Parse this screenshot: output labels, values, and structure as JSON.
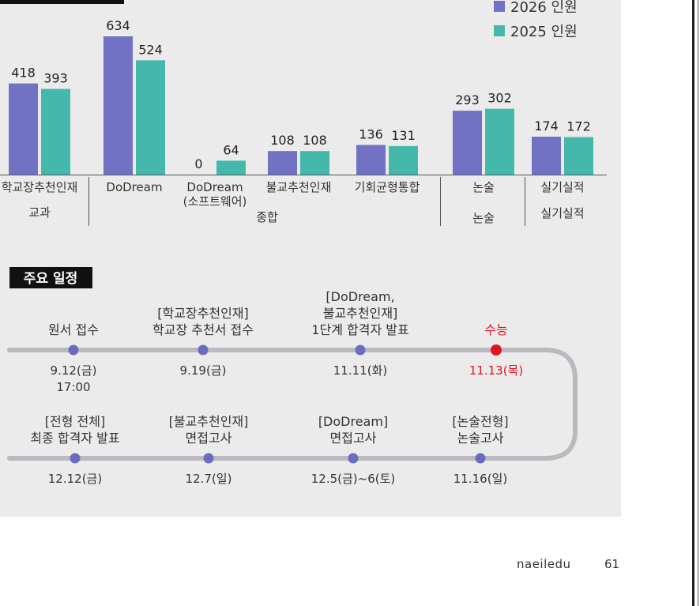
{
  "legend": [
    {
      "label": "2026 인원",
      "color": "#7272c4"
    },
    {
      "label": "2025 인원",
      "color": "#45b8ac"
    }
  ],
  "chart_data": {
    "type": "bar",
    "categories": [
      "학교장추천인재",
      "DoDream",
      "DoDream (소프트웨어)",
      "불교추천인재",
      "기회균형통합",
      "논술",
      "실기실적"
    ],
    "category_lines": [
      [
        "학교장추천인재"
      ],
      [
        "DoDream"
      ],
      [
        "DoDream",
        "(소프트웨어)"
      ],
      [
        "불교추천인재"
      ],
      [
        "기회균형통합"
      ],
      [
        "논술"
      ],
      [
        "실기실적"
      ]
    ],
    "series": [
      {
        "name": "2026 인원",
        "values": [
          418,
          634,
          0,
          108,
          136,
          293,
          174
        ]
      },
      {
        "name": "2025 인원",
        "values": [
          393,
          524,
          64,
          108,
          131,
          302,
          172
        ]
      }
    ],
    "groups": [
      "교과",
      "종합",
      "논술",
      "실기실적"
    ],
    "ylim": [
      0,
      680
    ]
  },
  "schedule": {
    "title": "주요 일정",
    "events": [
      {
        "label_lines": [
          "원서 접수"
        ],
        "date_lines": [
          "9.12(금)",
          "17:00"
        ],
        "highlight": false
      },
      {
        "label_lines": [
          "[학교장추천인재]",
          "학교장 추천서 접수"
        ],
        "date_lines": [
          "9.19(금)"
        ],
        "highlight": false
      },
      {
        "label_lines": [
          "[DoDream,",
          "불교추천인재]",
          "1단계 합격자 발표"
        ],
        "date_lines": [
          "11.11(화)"
        ],
        "highlight": false
      },
      {
        "label_lines": [
          "수능"
        ],
        "date_lines": [
          "11.13(목)"
        ],
        "highlight": true
      },
      {
        "label_lines": [
          "[논술전형]",
          "논술고사"
        ],
        "date_lines": [
          "11.16(일)"
        ],
        "highlight": false
      },
      {
        "label_lines": [
          "[DoDream]",
          "면접고사"
        ],
        "date_lines": [
          "12.5(금)~6(토)"
        ],
        "highlight": false
      },
      {
        "label_lines": [
          "[불교추천인재]",
          "면접고사"
        ],
        "date_lines": [
          "12.7(일)"
        ],
        "highlight": false
      },
      {
        "label_lines": [
          "[전형 전체]",
          "최종 합격자 발표"
        ],
        "date_lines": [
          "12.12(금)"
        ],
        "highlight": false
      }
    ],
    "highlight_color": "#e3141e",
    "dot_color": "#6b6bc0",
    "track_color": "#b9b9bf"
  },
  "footer": {
    "brand": "naeiledu",
    "page": "61"
  }
}
